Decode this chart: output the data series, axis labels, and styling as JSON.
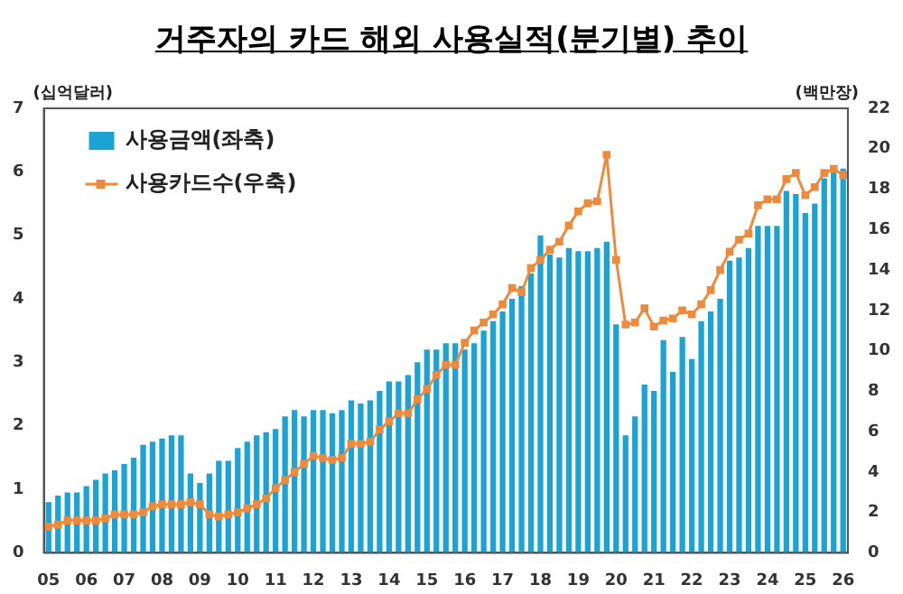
{
  "chart_data": {
    "type": "bar",
    "title": "거주자의 카드 해외 사용실적(분기별) 추이",
    "ylabel": "(십억달러)",
    "y2label": "(백만장)",
    "categories": [
      "05",
      null,
      null,
      null,
      "06",
      null,
      null,
      null,
      "07",
      null,
      null,
      null,
      "08",
      null,
      null,
      null,
      "09",
      null,
      null,
      null,
      "10",
      null,
      null,
      null,
      "11",
      null,
      null,
      null,
      "12",
      null,
      null,
      null,
      "13",
      null,
      null,
      null,
      "14",
      null,
      null,
      null,
      "15",
      null,
      null,
      null,
      "16",
      null,
      null,
      null,
      "17",
      null,
      null,
      null,
      "18",
      null,
      null,
      null,
      "19",
      null,
      null,
      null,
      "20",
      null,
      null,
      null,
      "21",
      null,
      null,
      null,
      "22",
      null,
      null,
      null,
      "23",
      null,
      null,
      null,
      "24",
      null,
      null,
      null,
      "25",
      null,
      null,
      null,
      "26"
    ],
    "series": [
      {
        "name": "사용금액(좌축)",
        "color": "#1ba3d3",
        "values": [
          0.8,
          0.9,
          0.95,
          0.95,
          1.05,
          1.15,
          1.25,
          1.3,
          1.4,
          1.5,
          1.7,
          1.75,
          1.8,
          1.85,
          1.85,
          1.25,
          1.1,
          1.25,
          1.45,
          1.45,
          1.65,
          1.75,
          1.85,
          1.9,
          1.95,
          2.15,
          2.25,
          2.15,
          2.25,
          2.25,
          2.2,
          2.25,
          2.4,
          2.35,
          2.4,
          2.55,
          2.7,
          2.7,
          2.8,
          3.0,
          3.2,
          3.2,
          3.3,
          3.3,
          3.2,
          3.3,
          3.5,
          3.65,
          3.8,
          4.0,
          4.2,
          4.4,
          5.0,
          4.7,
          4.65,
          4.8,
          4.75,
          4.75,
          4.8,
          4.9,
          3.6,
          1.85,
          2.15,
          2.65,
          2.55,
          3.35,
          2.85,
          3.4,
          3.05,
          3.65,
          3.8,
          4.0,
          4.6,
          4.65,
          4.8,
          5.15,
          5.15,
          5.15,
          5.7,
          5.65,
          5.35,
          5.5,
          5.9,
          6.0,
          6.05
        ]
      },
      {
        "name": "사용카드수(우축)",
        "type": "line",
        "axis": "y2",
        "color": "#ee8a3c",
        "values": [
          1.3,
          1.4,
          1.6,
          1.6,
          1.6,
          1.6,
          1.7,
          1.9,
          1.9,
          1.9,
          2.0,
          2.3,
          2.4,
          2.4,
          2.4,
          2.5,
          2.4,
          1.9,
          1.8,
          1.9,
          2.0,
          2.2,
          2.4,
          2.7,
          3.2,
          3.6,
          4.0,
          4.4,
          4.8,
          4.7,
          4.6,
          4.7,
          5.4,
          5.4,
          5.5,
          6.1,
          6.5,
          6.9,
          6.9,
          7.6,
          8.1,
          8.8,
          9.3,
          9.3,
          10.4,
          11.0,
          11.4,
          11.8,
          12.3,
          13.1,
          12.9,
          14.1,
          14.5,
          15.0,
          15.4,
          16.2,
          16.9,
          17.3,
          17.4,
          19.7,
          14.5,
          11.3,
          11.4,
          12.1,
          11.2,
          11.5,
          11.6,
          12.0,
          11.8,
          12.3,
          13.0,
          14.0,
          14.9,
          15.5,
          15.8,
          17.2,
          17.5,
          17.5,
          18.5,
          18.8,
          17.7,
          18.1,
          18.8,
          19.0,
          18.7
        ]
      }
    ],
    "ylim": [
      0,
      7
    ],
    "yticks": [
      0,
      1,
      2,
      3,
      4,
      5,
      6,
      7
    ],
    "y2lim": [
      0,
      22
    ],
    "y2ticks": [
      0,
      2,
      4,
      6,
      8,
      10,
      12,
      14,
      16,
      18,
      20,
      22
    ],
    "grid": false,
    "legend": "top left",
    "marker": "square",
    "line_style": "solid"
  }
}
